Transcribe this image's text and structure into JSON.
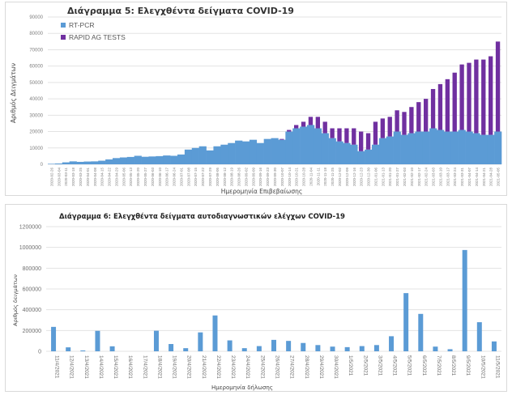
{
  "chart_data": [
    {
      "type": "bar",
      "stacked": true,
      "title": "Διάγραμμα 5: Ελεγχθέντα δείγματα COVID-19",
      "xlabel": "Ημερομηνία Επιβεβαίωσης",
      "ylabel": "Αριθμός Δειγμάτων",
      "ylim": [
        0,
        90000
      ],
      "yticks": [
        0,
        10000,
        20000,
        30000,
        40000,
        50000,
        60000,
        70000,
        80000,
        90000
      ],
      "grid": true,
      "legend_position": "top-left",
      "colors": {
        "RT-PCR": "#5b9bd5",
        "RAPID AG TESTS": "#7030a0"
      },
      "categories": [
        "2020-02-26",
        "2020-03-04",
        "2020-03-11",
        "2020-03-18",
        "2020-03-25",
        "2020-04-01",
        "2020-04-08",
        "2020-04-15",
        "2020-04-22",
        "2020-04-29",
        "2020-05-06",
        "2020-05-13",
        "2020-05-20",
        "2020-05-27",
        "2020-06-03",
        "2020-06-10",
        "2020-06-17",
        "2020-06-24",
        "2020-07-01",
        "2020-07-08",
        "2020-07-15",
        "2020-07-22",
        "2020-07-29",
        "2020-08-05",
        "2020-08-12",
        "2020-08-19",
        "2020-08-26",
        "2020-09-02",
        "2020-09-09",
        "2020-09-16",
        "2020-09-23",
        "2020-09-30",
        "2020-10-07",
        "2020-10-14",
        "2020-10-21",
        "2020-10-28",
        "2020-11-04",
        "2020-11-11",
        "2020-11-18",
        "2020-11-25",
        "2020-12-02",
        "2020-12-09",
        "2020-12-16",
        "2020-12-23",
        "2020-12-30",
        "2021-01-06",
        "2021-01-13",
        "2021-01-20",
        "2021-01-27",
        "2021-02-03",
        "2021-02-10",
        "2021-02-17",
        "2021-02-24",
        "2021-03-03",
        "2021-03-10",
        "2021-03-17",
        "2021-03-24",
        "2021-03-31",
        "2021-04-07",
        "2021-04-14",
        "2021-04-21",
        "2021-04-28",
        "2021-05-05"
      ],
      "series": [
        {
          "name": "RT-PCR",
          "values": [
            300,
            500,
            1200,
            1800,
            1500,
            1700,
            1800,
            2200,
            3000,
            3800,
            4200,
            4500,
            5200,
            4600,
            4800,
            5000,
            5400,
            5200,
            6000,
            9000,
            10000,
            11000,
            8500,
            11000,
            12000,
            13000,
            14500,
            14000,
            15000,
            13000,
            15500,
            16000,
            15000,
            20000,
            22000,
            23000,
            24000,
            22000,
            19000,
            16000,
            14000,
            13000,
            12000,
            8000,
            9000,
            12000,
            16000,
            17000,
            20000,
            18000,
            19000,
            20000,
            20000,
            22000,
            21000,
            20000,
            20000,
            21000,
            20000,
            19000,
            18000,
            18000,
            20000
          ]
        },
        {
          "name": "RAPID AG TESTS",
          "values": [
            0,
            0,
            0,
            0,
            0,
            0,
            0,
            0,
            0,
            0,
            0,
            0,
            0,
            0,
            0,
            0,
            0,
            0,
            0,
            0,
            0,
            0,
            0,
            0,
            0,
            0,
            0,
            0,
            0,
            0,
            0,
            0,
            500,
            1000,
            2000,
            3000,
            5000,
            7000,
            7000,
            6000,
            8000,
            9000,
            10000,
            12000,
            10000,
            14000,
            12000,
            12000,
            13000,
            14000,
            16000,
            18000,
            20000,
            24000,
            28000,
            32000,
            36000,
            40000,
            42000,
            45000,
            46000,
            48000,
            55000
          ]
        }
      ]
    },
    {
      "type": "bar",
      "title": "Διάγραμμα 6: Ελεγχθέντα δείγματα αυτοδιαγνωστικών ελέγχων COVID-19",
      "xlabel": "Ημερομηνία δήλωσης",
      "ylabel": "Αριθμός δειγμάτων",
      "ylim": [
        0,
        1200000
      ],
      "yticks": [
        0,
        200000,
        400000,
        600000,
        800000,
        1000000,
        1200000
      ],
      "grid": true,
      "color": "#5b9bd5",
      "categories": [
        "11/4/2021",
        "12/4/2021",
        "13/4/2021",
        "14/4/2021",
        "15/4/2021",
        "16/4/2021",
        "17/4/2021",
        "18/4/2021",
        "19/4/2021",
        "20/4/2021",
        "21/4/2021",
        "22/4/2021",
        "23/4/2021",
        "24/4/2021",
        "25/4/2021",
        "26/4/2021",
        "27/4/2021",
        "28/4/2021",
        "29/4/2021",
        "30/4/2021",
        "1/5/2021",
        "2/5/2021",
        "3/5/2021",
        "4/5/2021",
        "5/5/2021",
        "6/5/2021",
        "7/5/2021",
        "8/5/2021",
        "9/5/2021",
        "10/5/2021",
        "11/5/2021"
      ],
      "values": [
        235000,
        38000,
        8000,
        197000,
        48000,
        0,
        0,
        198000,
        70000,
        30000,
        182000,
        345000,
        105000,
        30000,
        50000,
        110000,
        100000,
        80000,
        60000,
        45000,
        40000,
        50000,
        60000,
        145000,
        560000,
        360000,
        45000,
        20000,
        975000,
        280000,
        95000
      ]
    }
  ]
}
